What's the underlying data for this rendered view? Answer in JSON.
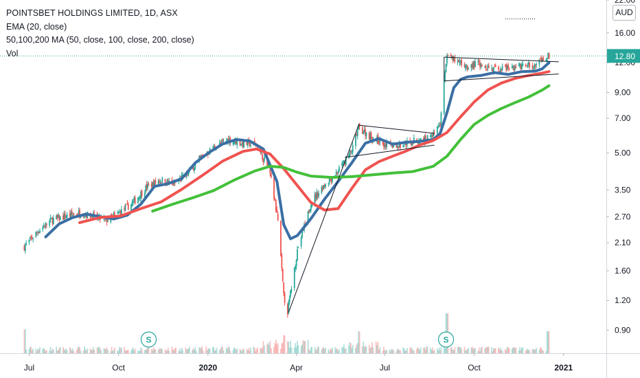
{
  "legend": {
    "title": "POINTSBET HOLDINGS LIMITED, 1D, ASX",
    "ema": "EMA (20, close)",
    "ma": "50,100,200 MA (50, close, 100, close, 200, close)",
    "vol": "Vol"
  },
  "currency": "AUD",
  "last_price_label": "12.80",
  "colors": {
    "ema": "#3a6fa4",
    "ma50": "#ef5350",
    "ma100": "#43c03a",
    "up": "#26a69a",
    "down": "#ef5350",
    "price_line": "#26a69a",
    "price_label_bg": "#26a69a"
  },
  "chart_data": {
    "type": "line",
    "title": "POINTSBET HOLDINGS LIMITED, 1D, ASX",
    "y_scale": "log",
    "ylim": [
      0.72,
      22.0
    ],
    "xlim": [
      "2019-06-01",
      "2021-02-14"
    ],
    "x_ticks": [
      {
        "label": "Jul",
        "date": "2019-07-01"
      },
      {
        "label": "Oct",
        "date": "2019-10-01"
      },
      {
        "label": "2020",
        "date": "2020-01-01",
        "bold": true
      },
      {
        "label": "Apr",
        "date": "2020-04-01"
      },
      {
        "label": "Jul",
        "date": "2020-07-01"
      },
      {
        "label": "Oct",
        "date": "2020-10-01"
      },
      {
        "label": "2021",
        "date": "2021-01-01",
        "bold": true
      }
    ],
    "y_ticks": [
      "22.00",
      "16.00",
      "12.00",
      "9.00",
      "7.00",
      "5.00",
      "3.50",
      "2.70",
      "2.10",
      "1.60",
      "1.20",
      "0.90"
    ],
    "last_price": 12.8,
    "series": [
      {
        "name": "EMA (20, close)",
        "key": "ema",
        "points": [
          [
            "2019-07-18",
            2.22
          ],
          [
            "2019-08-01",
            2.52
          ],
          [
            "2019-08-15",
            2.68
          ],
          [
            "2019-08-29",
            2.77
          ],
          [
            "2019-09-12",
            2.7
          ],
          [
            "2019-09-26",
            2.64
          ],
          [
            "2019-10-10",
            2.74
          ],
          [
            "2019-10-24",
            3.05
          ],
          [
            "2019-11-07",
            3.62
          ],
          [
            "2019-11-21",
            3.72
          ],
          [
            "2019-12-05",
            3.9
          ],
          [
            "2019-12-19",
            4.55
          ],
          [
            "2020-01-02",
            5.02
          ],
          [
            "2020-01-16",
            5.45
          ],
          [
            "2020-01-30",
            5.7
          ],
          [
            "2020-02-13",
            5.62
          ],
          [
            "2020-02-27",
            5.2
          ],
          [
            "2020-03-12",
            3.8
          ],
          [
            "2020-03-19",
            2.5
          ],
          [
            "2020-03-26",
            2.18
          ],
          [
            "2020-04-02",
            2.25
          ],
          [
            "2020-04-16",
            2.65
          ],
          [
            "2020-04-30",
            3.2
          ],
          [
            "2020-05-14",
            3.8
          ],
          [
            "2020-05-28",
            4.55
          ],
          [
            "2020-06-11",
            5.5
          ],
          [
            "2020-06-25",
            5.75
          ],
          [
            "2020-07-09",
            5.45
          ],
          [
            "2020-07-23",
            5.55
          ],
          [
            "2020-08-06",
            5.6
          ],
          [
            "2020-08-20",
            5.7
          ],
          [
            "2020-08-27",
            6.05
          ],
          [
            "2020-09-03",
            7.4
          ],
          [
            "2020-09-10",
            9.4
          ],
          [
            "2020-09-17",
            10.2
          ],
          [
            "2020-09-24",
            10.45
          ],
          [
            "2020-10-08",
            10.6
          ],
          [
            "2020-10-22",
            10.9
          ],
          [
            "2020-11-05",
            10.7
          ],
          [
            "2020-11-19",
            11.0
          ],
          [
            "2020-12-03",
            11.05
          ],
          [
            "2020-12-10",
            11.3
          ],
          [
            "2020-12-17",
            12.0
          ]
        ]
      },
      {
        "name": "MA 50",
        "key": "ma50",
        "points": [
          [
            "2019-08-22",
            2.55
          ],
          [
            "2019-09-12",
            2.68
          ],
          [
            "2019-10-03",
            2.72
          ],
          [
            "2019-10-24",
            2.92
          ],
          [
            "2019-11-14",
            3.12
          ],
          [
            "2019-12-05",
            3.52
          ],
          [
            "2019-12-26",
            4.02
          ],
          [
            "2020-01-16",
            4.62
          ],
          [
            "2020-02-06",
            5.08
          ],
          [
            "2020-02-20",
            5.2
          ],
          [
            "2020-03-05",
            4.95
          ],
          [
            "2020-03-19",
            4.3
          ],
          [
            "2020-04-02",
            3.65
          ],
          [
            "2020-04-16",
            3.1
          ],
          [
            "2020-04-30",
            2.88
          ],
          [
            "2020-05-14",
            2.92
          ],
          [
            "2020-05-28",
            3.55
          ],
          [
            "2020-06-11",
            4.25
          ],
          [
            "2020-06-25",
            4.6
          ],
          [
            "2020-07-09",
            4.85
          ],
          [
            "2020-07-23",
            5.1
          ],
          [
            "2020-08-06",
            5.4
          ],
          [
            "2020-08-20",
            5.65
          ],
          [
            "2020-09-03",
            6.1
          ],
          [
            "2020-09-17",
            7.1
          ],
          [
            "2020-10-01",
            8.2
          ],
          [
            "2020-10-15",
            9.2
          ],
          [
            "2020-10-29",
            9.85
          ],
          [
            "2020-11-12",
            10.3
          ],
          [
            "2020-11-26",
            10.6
          ],
          [
            "2020-12-10",
            10.85
          ],
          [
            "2020-12-17",
            11.0
          ]
        ]
      },
      {
        "name": "MA 100",
        "key": "ma100",
        "points": [
          [
            "2019-11-05",
            2.85
          ],
          [
            "2019-11-26",
            3.05
          ],
          [
            "2019-12-17",
            3.25
          ],
          [
            "2020-01-07",
            3.48
          ],
          [
            "2020-01-28",
            3.85
          ],
          [
            "2020-02-18",
            4.2
          ],
          [
            "2020-03-05",
            4.4
          ],
          [
            "2020-03-19",
            4.35
          ],
          [
            "2020-04-02",
            4.15
          ],
          [
            "2020-04-16",
            4.0
          ],
          [
            "2020-05-07",
            3.95
          ],
          [
            "2020-05-28",
            3.98
          ],
          [
            "2020-06-18",
            4.05
          ],
          [
            "2020-07-09",
            4.12
          ],
          [
            "2020-07-30",
            4.18
          ],
          [
            "2020-08-20",
            4.4
          ],
          [
            "2020-09-03",
            4.85
          ],
          [
            "2020-09-17",
            5.7
          ],
          [
            "2020-10-01",
            6.6
          ],
          [
            "2020-10-15",
            7.2
          ],
          [
            "2020-10-29",
            7.7
          ],
          [
            "2020-11-12",
            8.15
          ],
          [
            "2020-11-26",
            8.6
          ],
          [
            "2020-12-10",
            9.2
          ],
          [
            "2020-12-17",
            9.6
          ]
        ]
      }
    ],
    "price_path": [
      [
        "2019-06-26",
        2.02
      ],
      [
        "2019-07-10",
        2.35
      ],
      [
        "2019-07-24",
        2.62
      ],
      [
        "2019-08-07",
        2.7
      ],
      [
        "2019-08-21",
        2.8
      ],
      [
        "2019-09-04",
        2.72
      ],
      [
        "2019-09-18",
        2.6
      ],
      [
        "2019-10-02",
        2.8
      ],
      [
        "2019-10-16",
        3.1
      ],
      [
        "2019-10-30",
        3.6
      ],
      [
        "2019-11-13",
        3.85
      ],
      [
        "2019-11-27",
        3.7
      ],
      [
        "2019-12-11",
        4.1
      ],
      [
        "2019-12-25",
        4.8
      ],
      [
        "2020-01-08",
        5.3
      ],
      [
        "2020-01-22",
        5.7
      ],
      [
        "2020-02-05",
        5.5
      ],
      [
        "2020-02-19",
        5.45
      ],
      [
        "2020-03-04",
        4.3
      ],
      [
        "2020-03-13",
        2.6
      ],
      [
        "2020-03-19",
        1.25
      ],
      [
        "2020-03-23",
        1.08
      ],
      [
        "2020-04-02",
        1.95
      ],
      [
        "2020-04-16",
        3.1
      ],
      [
        "2020-04-30",
        3.7
      ],
      [
        "2020-05-14",
        4.2
      ],
      [
        "2020-05-28",
        5.1
      ],
      [
        "2020-06-04",
        6.4
      ],
      [
        "2020-06-18",
        5.8
      ],
      [
        "2020-07-02",
        5.45
      ],
      [
        "2020-07-16",
        5.35
      ],
      [
        "2020-07-30",
        5.6
      ],
      [
        "2020-08-13",
        5.75
      ],
      [
        "2020-08-27",
        6.6
      ],
      [
        "2020-09-03",
        13.2
      ],
      [
        "2020-09-10",
        12.2
      ],
      [
        "2020-09-24",
        11.6
      ],
      [
        "2020-10-08",
        11.9
      ],
      [
        "2020-10-22",
        11.2
      ],
      [
        "2020-11-05",
        11.4
      ],
      [
        "2020-11-19",
        11.6
      ],
      [
        "2020-12-03",
        11.7
      ],
      [
        "2020-12-17",
        12.8
      ]
    ],
    "trendlines": [
      [
        [
          "2020-03-24",
          1.07
        ],
        [
          "2020-06-04",
          6.55
        ]
      ],
      [
        [
          "2020-06-04",
          6.55
        ],
        [
          "2020-08-21",
          6.05
        ]
      ],
      [
        [
          "2020-05-21",
          4.8
        ],
        [
          "2020-08-21",
          5.4
        ]
      ],
      [
        [
          "2020-08-31",
          10.05
        ],
        [
          "2020-08-31",
          12.65
        ]
      ],
      [
        [
          "2020-08-31",
          12.65
        ],
        [
          "2020-12-27",
          12.1
        ]
      ],
      [
        [
          "2020-08-31",
          10.05
        ],
        [
          "2020-12-27",
          10.75
        ]
      ]
    ],
    "events": [
      {
        "label": "S",
        "date": "2019-11-01"
      },
      {
        "label": "S",
        "date": "2020-09-02"
      }
    ],
    "volume_spikes": [
      {
        "date": "2019-06-26",
        "rel": 0.6
      },
      {
        "date": "2020-03-20",
        "rel": 0.45
      },
      {
        "date": "2020-06-05",
        "rel": 0.55
      },
      {
        "date": "2020-09-03",
        "rel": 1.0
      },
      {
        "date": "2020-12-16",
        "rel": 0.55
      }
    ]
  }
}
